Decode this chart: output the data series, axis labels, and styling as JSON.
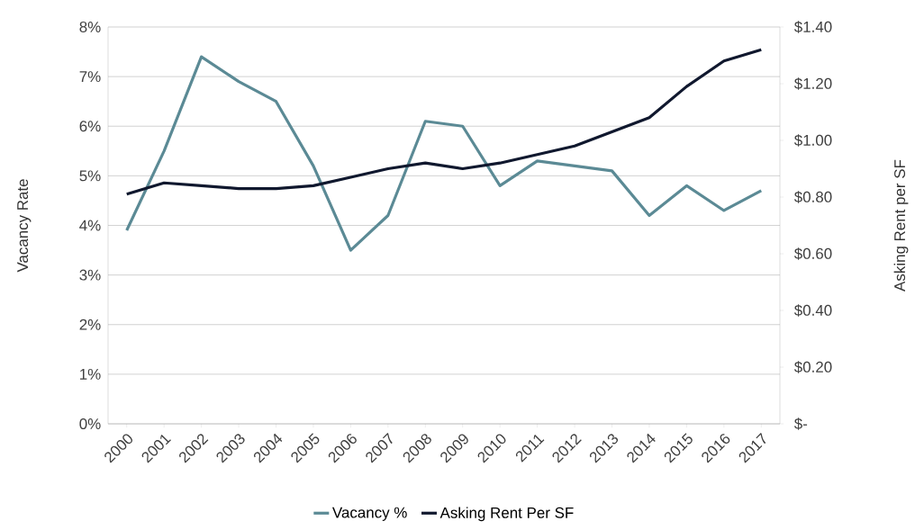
{
  "chart_data": {
    "type": "line",
    "ylabel": "Vacancy Rate",
    "y2label": "Asking Rent per SF",
    "categories": [
      "2000",
      "2001",
      "2002",
      "2003",
      "2004",
      "2005",
      "2006",
      "2007",
      "2008",
      "2009",
      "2010",
      "2011",
      "2012",
      "2013",
      "2014",
      "2015",
      "2016",
      "2017"
    ],
    "series": [
      {
        "name": "Vacancy %",
        "color": "#5b8a95",
        "values": [
          3.9,
          5.5,
          7.4,
          6.9,
          6.5,
          5.2,
          3.5,
          4.2,
          6.1,
          6.0,
          4.8,
          5.3,
          5.2,
          5.1,
          4.2,
          4.8,
          4.3,
          4.7
        ]
      },
      {
        "name": "Asking Rent Per SF",
        "color": "#10182e",
        "axis": "y2",
        "values": [
          0.81,
          0.85,
          0.84,
          0.83,
          0.83,
          0.84,
          0.87,
          0.9,
          0.92,
          0.9,
          0.92,
          0.95,
          0.98,
          1.03,
          1.08,
          1.19,
          1.28,
          1.32
        ]
      }
    ],
    "ylim": [
      0,
      8
    ],
    "yticks": [
      {
        "value": 0,
        "label": "0%"
      },
      {
        "value": 1,
        "label": "1%"
      },
      {
        "value": 2,
        "label": "2%"
      },
      {
        "value": 3,
        "label": "3%"
      },
      {
        "value": 4,
        "label": "4%"
      },
      {
        "value": 5,
        "label": "5%"
      },
      {
        "value": 6,
        "label": "6%"
      },
      {
        "value": 7,
        "label": "7%"
      },
      {
        "value": 8,
        "label": "8%"
      }
    ],
    "y2lim": [
      0,
      1.4
    ],
    "y2ticks": [
      {
        "value": 0,
        "label": "$-"
      },
      {
        "value": 0.2,
        "label": "$0.20"
      },
      {
        "value": 0.4,
        "label": "$0.40"
      },
      {
        "value": 0.6,
        "label": "$0.60"
      },
      {
        "value": 0.8,
        "label": "$0.80"
      },
      {
        "value": 1.0,
        "label": "$1.00"
      },
      {
        "value": 1.2,
        "label": "$1.20"
      },
      {
        "value": 1.4,
        "label": "$1.40"
      }
    ],
    "grid": "y",
    "legend": "bottom",
    "marker": "none",
    "line_style": "solid"
  }
}
